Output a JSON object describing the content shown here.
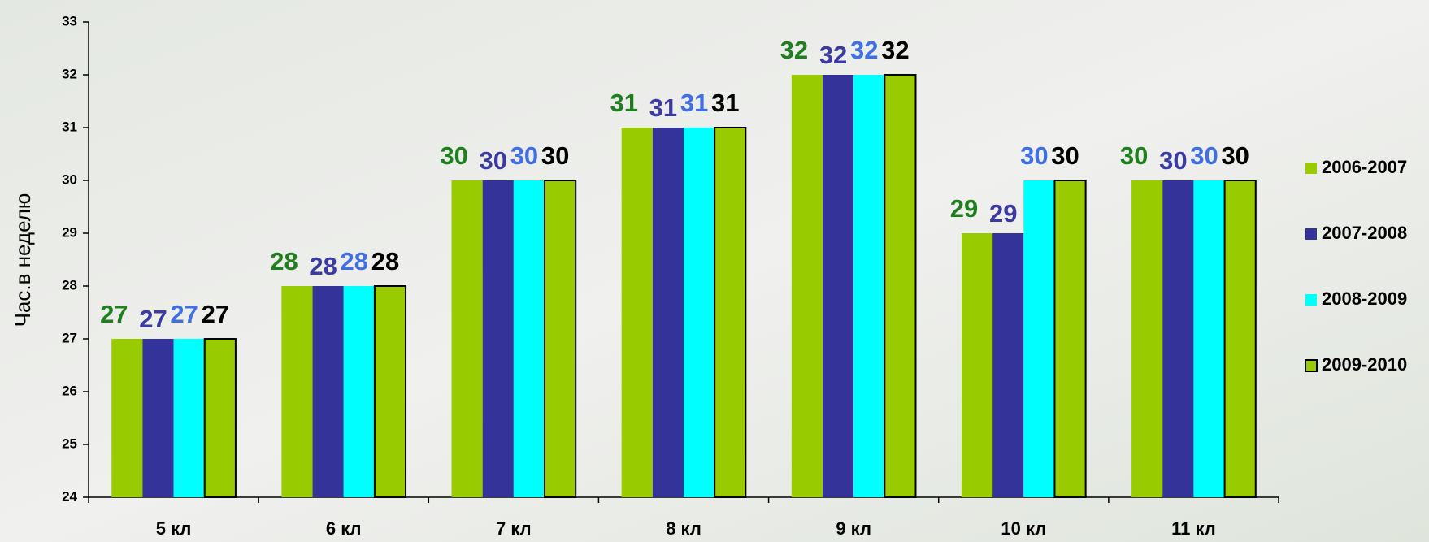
{
  "chart_data": {
    "type": "bar",
    "y_label": "Час.в неделю",
    "categories": [
      "5 кл",
      "6 кл",
      "7 кл",
      "8 кл",
      "9 кл",
      "10 кл",
      "11 кл"
    ],
    "series": [
      {
        "name": "2006-2007",
        "color": "#99cc00",
        "label_color": "#1f7f1f",
        "values": [
          27,
          28,
          30,
          31,
          32,
          29,
          30
        ]
      },
      {
        "name": "2007-2008",
        "color": "#333399",
        "label_color": "#3a3aa0",
        "values": [
          27,
          28,
          30,
          31,
          32,
          29,
          30
        ]
      },
      {
        "name": "2008-2009",
        "color": "#00ffff",
        "label_color": "#3f6fe0",
        "values": [
          27,
          28,
          30,
          31,
          32,
          30,
          30
        ]
      },
      {
        "name": "2009-2010",
        "color": "#99cc00",
        "edgecolor": "#000000",
        "label_color": "#000000",
        "values": [
          27,
          28,
          30,
          31,
          32,
          30,
          30
        ]
      }
    ],
    "ylim": [
      24,
      33
    ],
    "yticks": [
      24,
      25,
      26,
      27,
      28,
      29,
      30,
      31,
      32,
      33
    ]
  }
}
